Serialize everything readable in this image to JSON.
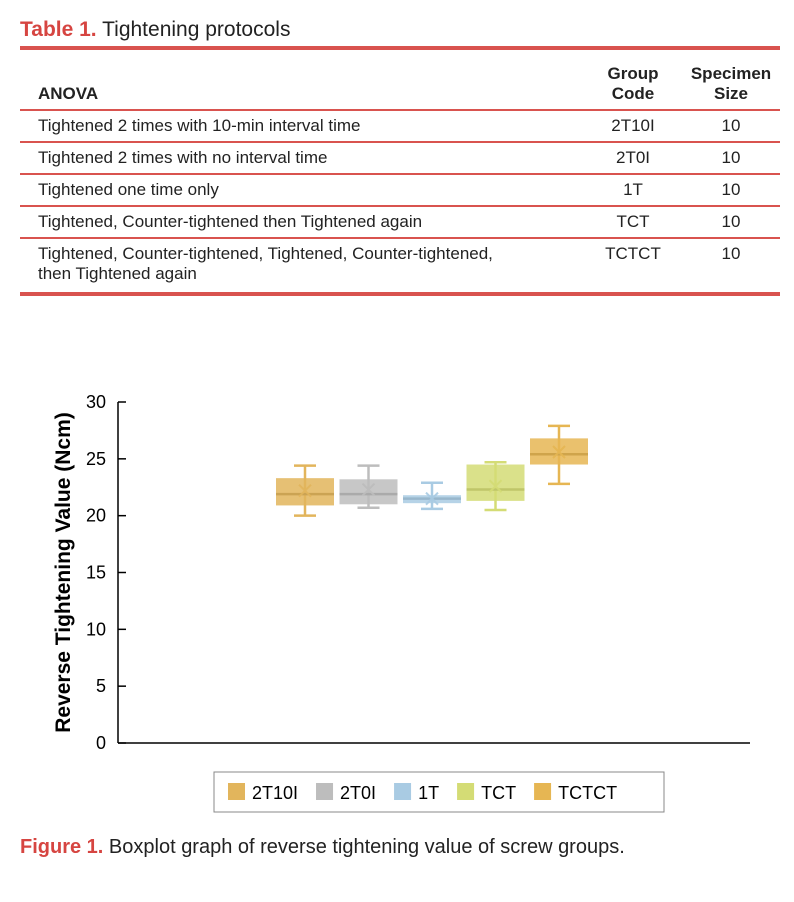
{
  "table": {
    "label": "Table 1.",
    "title": "Tightening protocols",
    "headers": [
      "ANOVA",
      "Group Code",
      "Specimen Size"
    ],
    "rows": [
      [
        "Tightened 2 times with 10-min interval time",
        "2T10I",
        "10"
      ],
      [
        "Tightened 2 times with no interval time",
        "2T0I",
        "10"
      ],
      [
        "Tightened one time only",
        "1T",
        "10"
      ],
      [
        "Tightened, Counter-tightened then Tightened again",
        "TCT",
        "10"
      ],
      [
        "Tightened, Counter-tightened, Tightened, Counter-tightened, then Tightened again",
        "TCTCT",
        "10"
      ]
    ]
  },
  "figure": {
    "label": "Figure 1.",
    "caption": "Boxplot graph of reverse tightening value of screw groups."
  },
  "chart_data": {
    "type": "boxplot",
    "ylabel": "Reverse Tightening Value (Ncm)",
    "ylim": [
      0,
      30
    ],
    "yticks": [
      "0",
      "5",
      "10",
      "15",
      "20",
      "25",
      "30"
    ],
    "legend_position": "bottom",
    "series": [
      {
        "name": "2T10I",
        "color": "#e2b55c",
        "min": 20.0,
        "q1": 20.9,
        "median": 21.9,
        "q3": 23.3,
        "max": 24.4,
        "mean": 22.2
      },
      {
        "name": "2T0I",
        "color": "#bdbdbd",
        "min": 20.7,
        "q1": 21.0,
        "median": 21.9,
        "q3": 23.2,
        "max": 24.4,
        "mean": 22.3
      },
      {
        "name": "1T",
        "color": "#a9cbe3",
        "min": 20.6,
        "q1": 21.1,
        "median": 21.5,
        "q3": 21.8,
        "max": 22.9,
        "mean": 21.5
      },
      {
        "name": "TCT",
        "color": "#d4dc75",
        "min": 20.5,
        "q1": 21.3,
        "median": 22.3,
        "q3": 24.5,
        "max": 24.7,
        "mean": 22.6
      },
      {
        "name": "TCTCT",
        "color": "#e6b653",
        "min": 22.8,
        "q1": 24.5,
        "median": 25.4,
        "q3": 26.8,
        "max": 27.9,
        "mean": 25.6
      }
    ]
  }
}
